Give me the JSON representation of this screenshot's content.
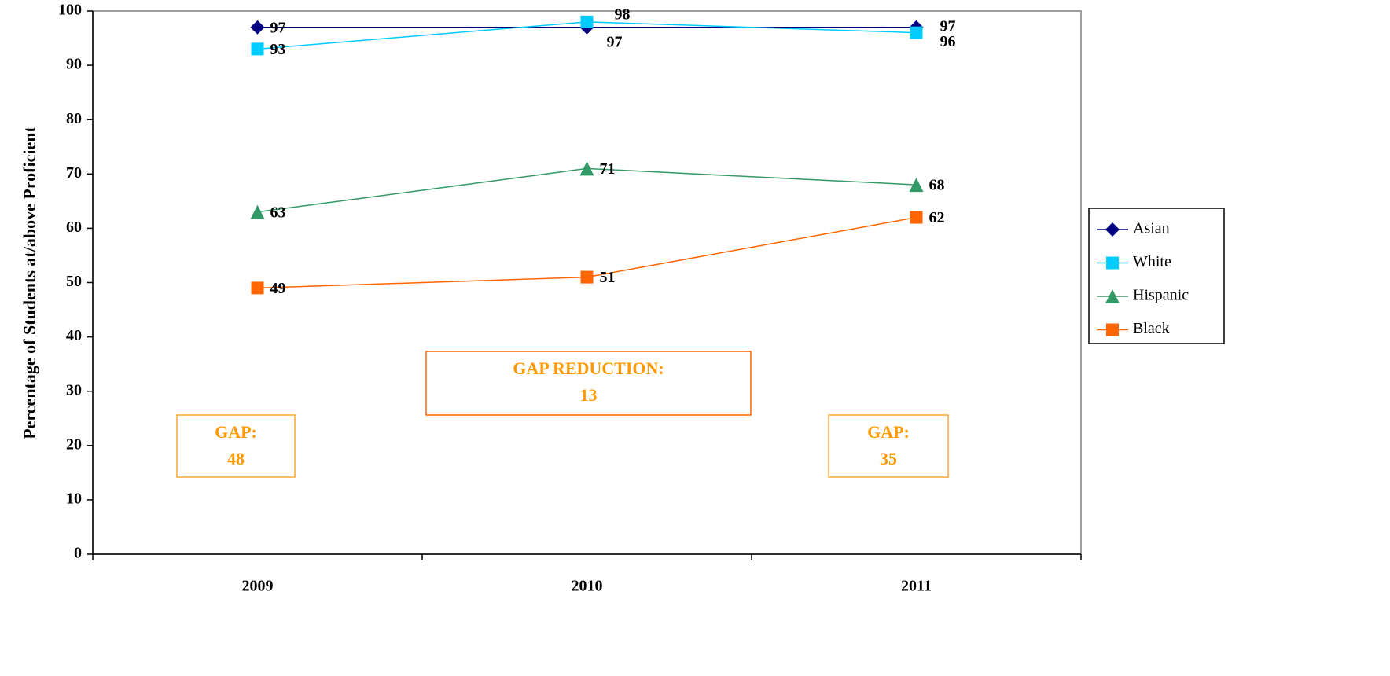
{
  "chart_data": {
    "type": "line",
    "y_label": "Percentage of Students at/above Proficient",
    "categories": [
      "2009",
      "2010",
      "2011"
    ],
    "series": [
      {
        "name": "Asian",
        "color": "#000080",
        "marker": "diamond",
        "values": [
          97,
          97,
          97
        ]
      },
      {
        "name": "White",
        "color": "#00ccff",
        "marker": "square",
        "values": [
          93,
          98,
          96
        ]
      },
      {
        "name": "Hispanic",
        "color": "#339966",
        "marker": "triangle",
        "values": [
          63,
          71,
          68
        ]
      },
      {
        "name": "Black",
        "color": "#ff6600",
        "marker": "square",
        "values": [
          49,
          51,
          62
        ]
      }
    ],
    "ylim": [
      0,
      100
    ],
    "yticks": [
      0,
      10,
      20,
      30,
      40,
      50,
      60,
      70,
      80,
      90,
      100
    ],
    "legend": "right",
    "annotations": [
      {
        "label": "GAP:",
        "value": 48
      },
      {
        "label": "GAP REDUCTION:",
        "value": 13
      },
      {
        "label": "GAP:",
        "value": 35
      }
    ]
  }
}
